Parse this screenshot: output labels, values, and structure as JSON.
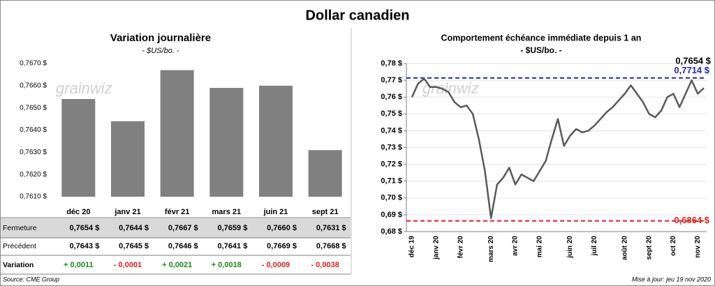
{
  "title": "Dollar canadien",
  "source": "Source: CME Group",
  "updated": "Mise à jour: jeu 19 nov 2020",
  "chart_data": [
    {
      "type": "bar",
      "title": "Variation  journalière",
      "subtitle": "- $US/bo. -",
      "watermark": "grainwiz",
      "categories": [
        "déc 20",
        "janv 21",
        "févr 21",
        "mars 21",
        "juin 21",
        "sept 21"
      ],
      "color": "#808080",
      "positive_color": "#1a8a1a",
      "negative_color": "#e02020",
      "ylim": [
        0.761,
        0.767
      ],
      "yticks": [
        {
          "value": 0.761,
          "label": "0,7610 $"
        },
        {
          "value": 0.762,
          "label": "0,7620 $"
        },
        {
          "value": 0.763,
          "label": "0,7630 $"
        },
        {
          "value": 0.764,
          "label": "0,7640 $"
        },
        {
          "value": 0.765,
          "label": "0,7650 $"
        },
        {
          "value": 0.766,
          "label": "0,7660 $"
        },
        {
          "value": 0.767,
          "label": "0,7670 $"
        }
      ],
      "series": [
        {
          "name": "Fermeture",
          "values": [
            0.7654,
            0.7644,
            0.7667,
            0.7659,
            0.766,
            0.7631
          ],
          "value_labels": [
            "0,7654  $",
            "0,7644  $",
            "0,7667  $",
            "0,7659  $",
            "0,7660  $",
            "0,7631  $"
          ]
        },
        {
          "name": "Précédent",
          "values": [
            0.7643,
            0.7645,
            0.7646,
            0.7641,
            0.7669,
            0.7668
          ],
          "value_labels": [
            "0,7643  $",
            "0,7645  $",
            "0,7646  $",
            "0,7641  $",
            "0,7669  $",
            "0,7668  $"
          ]
        },
        {
          "name": "Variation",
          "values": [
            0.0011,
            -0.0001,
            0.0021,
            0.0018,
            -0.0009,
            -0.0038
          ],
          "value_labels": [
            "+ 0,0011",
            "- 0,0001",
            "+ 0,0021",
            "+ 0,0018",
            "- 0,0009",
            "- 0,0038"
          ]
        }
      ]
    },
    {
      "type": "line",
      "title": "Comportement échéance immédiate depuis 1 an",
      "subtitle": "- $US/bo. -",
      "watermark": "grainwiz",
      "categories": [
        "déc 19",
        null,
        null,
        null,
        "janv 20",
        null,
        null,
        null,
        "févr 20",
        null,
        null,
        null,
        null,
        "mars 20",
        null,
        null,
        null,
        "avr 20",
        null,
        null,
        null,
        "mai 20",
        null,
        null,
        null,
        null,
        "juin 20",
        null,
        null,
        null,
        "juil 20",
        null,
        null,
        null,
        null,
        "août 20",
        null,
        null,
        null,
        "sept 20",
        null,
        null,
        null,
        "oct 20",
        null,
        null,
        null,
        "nov 20",
        null
      ],
      "series": [
        {
          "name": "Échéance immédiate",
          "color": "#595959",
          "values": [
            0.76,
            0.768,
            0.771,
            0.766,
            0.766,
            0.765,
            0.763,
            0.757,
            0.754,
            0.755,
            0.75,
            0.735,
            0.716,
            0.688,
            0.708,
            0.712,
            0.718,
            0.708,
            0.714,
            0.712,
            0.71,
            0.716,
            0.722,
            0.735,
            0.747,
            0.731,
            0.737,
            0.741,
            0.739,
            0.74,
            0.743,
            0.747,
            0.751,
            0.754,
            0.758,
            0.762,
            0.767,
            0.762,
            0.757,
            0.75,
            0.748,
            0.752,
            0.76,
            0.762,
            0.754,
            0.762,
            0.77,
            0.762,
            0.7654
          ],
          "last_label": "0,7654 $"
        }
      ],
      "reference_lines": [
        {
          "value": 0.7714,
          "label": "0,7714 $",
          "color": "#2323b8"
        },
        {
          "value": 0.6864,
          "label": "0,6864 $",
          "color": "#e02020"
        }
      ],
      "ylim": [
        0.68,
        0.78
      ],
      "yticks": [
        {
          "value": 0.68,
          "label": "0,68 $"
        },
        {
          "value": 0.69,
          "label": "0,69 $"
        },
        {
          "value": 0.7,
          "label": "0,70 $"
        },
        {
          "value": 0.71,
          "label": "0,71 $"
        },
        {
          "value": 0.72,
          "label": "0,72 $"
        },
        {
          "value": 0.73,
          "label": "0,73 $"
        },
        {
          "value": 0.74,
          "label": "0,74 $"
        },
        {
          "value": 0.75,
          "label": "0,75 $"
        },
        {
          "value": 0.76,
          "label": "0,76 $"
        },
        {
          "value": 0.77,
          "label": "0,77 $"
        },
        {
          "value": 0.78,
          "label": "0,78 $"
        }
      ],
      "grid": true
    }
  ]
}
